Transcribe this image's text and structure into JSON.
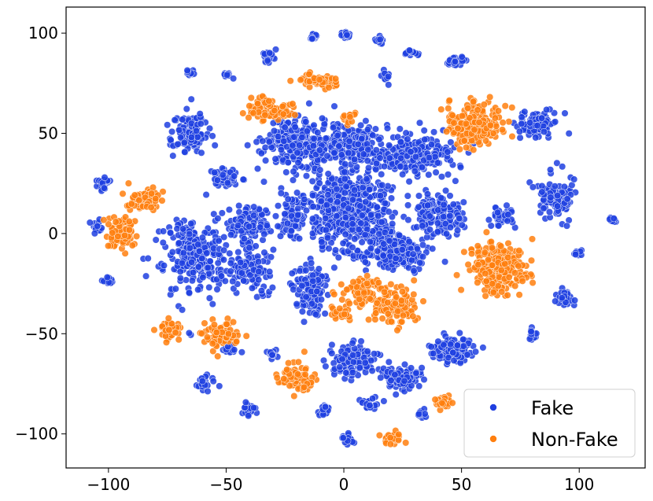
{
  "chart_data": {
    "type": "scatter",
    "title": "",
    "xlabel": "",
    "ylabel": "",
    "xlim": [
      -118,
      128
    ],
    "ylim": [
      -117,
      113
    ],
    "x_ticks": [
      -100,
      -50,
      0,
      50,
      100
    ],
    "y_ticks": [
      -100,
      -50,
      0,
      50,
      100
    ],
    "x_tick_labels": [
      "−100",
      "−50",
      "0",
      "50",
      "100"
    ],
    "y_tick_labels": [
      "−100",
      "−50",
      "0",
      "50",
      "100"
    ],
    "grid": false,
    "legend": {
      "position": "bottom-right"
    },
    "series": [
      {
        "name": "Fake",
        "color": "#1f3fe0",
        "clusters": [
          {
            "cx": 2,
            "cy": 10,
            "rx": 20,
            "ry": 24,
            "n": 520
          },
          {
            "cx": -20,
            "cy": 45,
            "rx": 16,
            "ry": 14,
            "n": 260
          },
          {
            "cx": 5,
            "cy": 45,
            "rx": 12,
            "ry": 12,
            "n": 180
          },
          {
            "cx": 30,
            "cy": 40,
            "rx": 18,
            "ry": 12,
            "n": 220
          },
          {
            "cx": 40,
            "cy": 10,
            "rx": 12,
            "ry": 12,
            "n": 140
          },
          {
            "cx": 22,
            "cy": -10,
            "rx": 14,
            "ry": 10,
            "n": 170
          },
          {
            "cx": -63,
            "cy": -10,
            "rx": 16,
            "ry": 22,
            "n": 260
          },
          {
            "cx": -40,
            "cy": -18,
            "rx": 9,
            "ry": 12,
            "n": 110
          },
          {
            "cx": -40,
            "cy": 5,
            "rx": 8,
            "ry": 10,
            "n": 110
          },
          {
            "cx": -22,
            "cy": 8,
            "rx": 6,
            "ry": 12,
            "n": 70
          },
          {
            "cx": -14,
            "cy": -28,
            "rx": 8,
            "ry": 14,
            "n": 120
          },
          {
            "cx": 4,
            "cy": -64,
            "rx": 11,
            "ry": 8,
            "n": 150
          },
          {
            "cx": 25,
            "cy": -72,
            "rx": 10,
            "ry": 6,
            "n": 90
          },
          {
            "cx": 46,
            "cy": -58,
            "rx": 10,
            "ry": 7,
            "n": 130
          },
          {
            "cx": -66,
            "cy": 50,
            "rx": 9,
            "ry": 10,
            "n": 130
          },
          {
            "cx": 82,
            "cy": 55,
            "rx": 9,
            "ry": 6,
            "n": 90
          },
          {
            "cx": 90,
            "cy": 18,
            "rx": 8,
            "ry": 12,
            "n": 110
          },
          {
            "cx": -50,
            "cy": 28,
            "rx": 6,
            "ry": 6,
            "n": 50
          },
          {
            "cx": 67,
            "cy": 8,
            "rx": 5,
            "ry": 6,
            "n": 40
          },
          {
            "cx": 94,
            "cy": -32,
            "rx": 4,
            "ry": 5,
            "n": 35
          },
          {
            "cx": 80,
            "cy": -50,
            "rx": 3,
            "ry": 3,
            "n": 20
          },
          {
            "cx": -100,
            "cy": -24,
            "rx": 3,
            "ry": 2,
            "n": 15
          },
          {
            "cx": -40,
            "cy": -88,
            "rx": 4,
            "ry": 3,
            "n": 20
          },
          {
            "cx": -60,
            "cy": -75,
            "rx": 4,
            "ry": 4,
            "n": 25
          },
          {
            "cx": -32,
            "cy": 88,
            "rx": 3,
            "ry": 3,
            "n": 30
          },
          {
            "cx": -13,
            "cy": 98,
            "rx": 2,
            "ry": 2,
            "n": 18
          },
          {
            "cx": 1,
            "cy": 99,
            "rx": 2,
            "ry": 2,
            "n": 18
          },
          {
            "cx": 15,
            "cy": 96,
            "rx": 2,
            "ry": 2,
            "n": 15
          },
          {
            "cx": 28,
            "cy": 90,
            "rx": 3,
            "ry": 2,
            "n": 15
          },
          {
            "cx": 48,
            "cy": 86,
            "rx": 4,
            "ry": 3,
            "n": 25
          },
          {
            "cx": -65,
            "cy": 80,
            "rx": 2,
            "ry": 2,
            "n": 12
          },
          {
            "cx": -50,
            "cy": 79,
            "rx": 2,
            "ry": 2,
            "n": 12
          },
          {
            "cx": 18,
            "cy": 78,
            "rx": 2,
            "ry": 3,
            "n": 12
          },
          {
            "cx": -102,
            "cy": 25,
            "rx": 3,
            "ry": 4,
            "n": 20
          },
          {
            "cx": -105,
            "cy": 3,
            "rx": 3,
            "ry": 3,
            "n": 15
          },
          {
            "cx": -48,
            "cy": -58,
            "rx": 4,
            "ry": 3,
            "n": 15
          },
          {
            "cx": 100,
            "cy": -10,
            "rx": 2,
            "ry": 2,
            "n": 10
          },
          {
            "cx": 114,
            "cy": 7,
            "rx": 2,
            "ry": 2,
            "n": 12
          },
          {
            "cx": 2,
            "cy": -103,
            "rx": 3,
            "ry": 3,
            "n": 15
          },
          {
            "cx": -8,
            "cy": -88,
            "rx": 3,
            "ry": 4,
            "n": 20
          },
          {
            "cx": 12,
            "cy": -85,
            "rx": 5,
            "ry": 3,
            "n": 20
          },
          {
            "cx": 33,
            "cy": -90,
            "rx": 3,
            "ry": 3,
            "n": 12
          },
          {
            "cx": -30,
            "cy": -60,
            "rx": 3,
            "ry": 3,
            "n": 15
          }
        ]
      },
      {
        "name": "Non-Fake",
        "color": "#ff7f0e",
        "clusters": [
          {
            "cx": 55,
            "cy": 55,
            "rx": 13,
            "ry": 12,
            "n": 200
          },
          {
            "cx": 66,
            "cy": -18,
            "rx": 13,
            "ry": 14,
            "n": 240
          },
          {
            "cx": -32,
            "cy": 62,
            "rx": 10,
            "ry": 6,
            "n": 100
          },
          {
            "cx": -10,
            "cy": 76,
            "rx": 9,
            "ry": 4,
            "n": 70
          },
          {
            "cx": 8,
            "cy": -28,
            "rx": 9,
            "ry": 8,
            "n": 90
          },
          {
            "cx": 22,
            "cy": -36,
            "rx": 11,
            "ry": 10,
            "n": 120
          },
          {
            "cx": -95,
            "cy": 0,
            "rx": 7,
            "ry": 9,
            "n": 90
          },
          {
            "cx": -85,
            "cy": 17,
            "rx": 8,
            "ry": 6,
            "n": 70
          },
          {
            "cx": -74,
            "cy": -48,
            "rx": 5,
            "ry": 5,
            "n": 45
          },
          {
            "cx": -52,
            "cy": -50,
            "rx": 9,
            "ry": 7,
            "n": 90
          },
          {
            "cx": -20,
            "cy": -72,
            "rx": 9,
            "ry": 8,
            "n": 90
          },
          {
            "cx": 0,
            "cy": -40,
            "rx": 6,
            "ry": 4,
            "n": 25
          },
          {
            "cx": 20,
            "cy": -102,
            "rx": 5,
            "ry": 3,
            "n": 30
          },
          {
            "cx": 42,
            "cy": -84,
            "rx": 3,
            "ry": 3,
            "n": 25
          },
          {
            "cx": 2,
            "cy": 58,
            "rx": 3,
            "ry": 3,
            "n": 15
          }
        ]
      }
    ]
  }
}
